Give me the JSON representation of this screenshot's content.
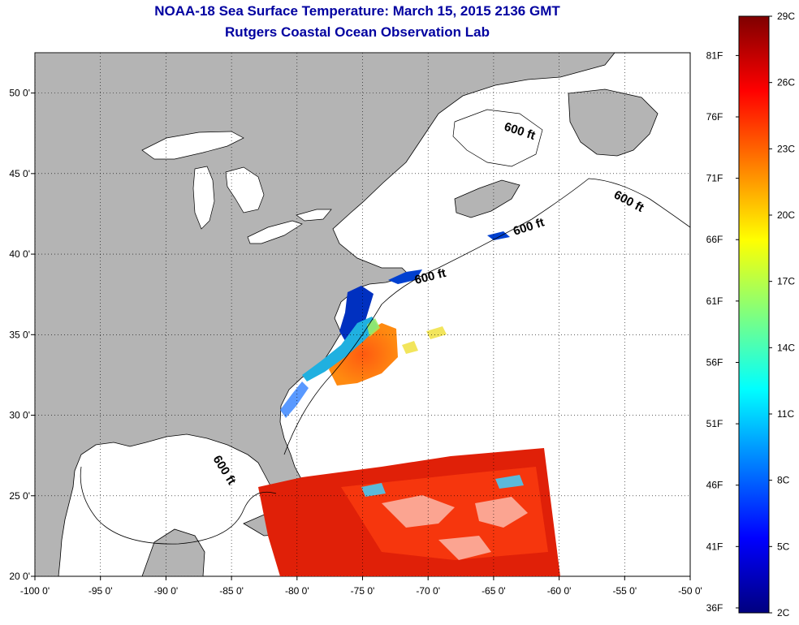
{
  "title": "NOAA-18 Sea Surface Temperature:  March 15, 2015 2136 GMT",
  "subtitle": "Rutgers Coastal Ocean Observation Lab",
  "map": {
    "lon_range": [
      -100,
      -50
    ],
    "lat_range": [
      20,
      52.5
    ],
    "lon_ticks": [
      {
        "value": -100,
        "label": "-100 0'"
      },
      {
        "value": -95,
        "label": "-95 0'"
      },
      {
        "value": -90,
        "label": "-90 0'"
      },
      {
        "value": -85,
        "label": "-85 0'"
      },
      {
        "value": -80,
        "label": "-80 0'"
      },
      {
        "value": -75,
        "label": "-75 0'"
      },
      {
        "value": -70,
        "label": "-70 0'"
      },
      {
        "value": -65,
        "label": "-65 0'"
      },
      {
        "value": -60,
        "label": "-60 0'"
      },
      {
        "value": -55,
        "label": "-55 0'"
      },
      {
        "value": -50,
        "label": "-50 0'"
      }
    ],
    "lat_ticks": [
      {
        "value": 50,
        "label": "50 0'"
      },
      {
        "value": 45,
        "label": "45 0'"
      },
      {
        "value": 40,
        "label": "40 0'"
      },
      {
        "value": 35,
        "label": "35 0'"
      },
      {
        "value": 30,
        "label": "30 0'"
      },
      {
        "value": 25,
        "label": "25 0'"
      },
      {
        "value": 20,
        "label": "20 0'"
      }
    ],
    "grid": "dotted",
    "depth_label": "600 ft",
    "colors": {
      "land": "#b4b4b4",
      "ocean_no_data": "#ffffff",
      "coastline": "#000000"
    }
  },
  "colorbar": {
    "min_c": 2,
    "max_c": 29,
    "celsius_labels": [
      "29C",
      "26C",
      "23C",
      "20C",
      "17C",
      "14C",
      "11C",
      "8C",
      "5C",
      "2C"
    ],
    "fahrenheit_labels": [
      "81F",
      "76F",
      "71F",
      "66F",
      "61F",
      "56F",
      "51F",
      "46F",
      "41F",
      "36F"
    ],
    "colormap": "jet",
    "stops": [
      "#00007f",
      "#0000ff",
      "#007fff",
      "#00ffff",
      "#7fff7f",
      "#ffff00",
      "#ff7f00",
      "#ff0000",
      "#7f0000"
    ]
  }
}
